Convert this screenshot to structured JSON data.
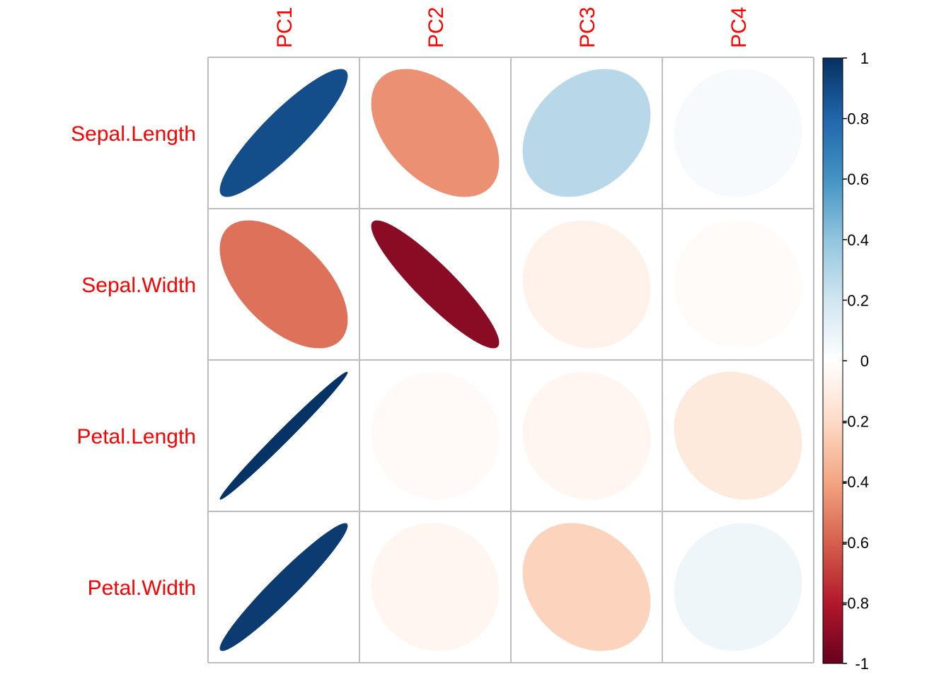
{
  "chart_data": {
    "type": "heatmap",
    "title": "",
    "method": "ellipse",
    "rows": [
      "Sepal.Length",
      "Sepal.Width",
      "Petal.Length",
      "Petal.Width"
    ],
    "cols": [
      "PC1",
      "PC2",
      "PC3",
      "PC4"
    ],
    "values": [
      [
        0.89,
        -0.46,
        0.28,
        0.04
      ],
      [
        -0.55,
        -0.91,
        -0.07,
        -0.02
      ],
      [
        0.99,
        -0.03,
        -0.05,
        -0.12
      ],
      [
        0.96,
        -0.05,
        -0.23,
        0.07
      ]
    ],
    "colorbar": {
      "min": -1,
      "max": 1,
      "ticks": [
        "1",
        "0.8",
        "0.6",
        "0.4",
        "0.2",
        "0",
        "-0.2",
        "-0.4",
        "-0.6",
        "-0.8",
        "-1"
      ],
      "colors": [
        "#67001F",
        "#B2182B",
        "#D6604D",
        "#F4A582",
        "#FDDBC7",
        "#FFFFFF",
        "#D1E5F0",
        "#92C5DE",
        "#4393C3",
        "#2166AC",
        "#053061"
      ]
    },
    "label_color": "#ff0000",
    "grid_color": "#bebebe"
  }
}
